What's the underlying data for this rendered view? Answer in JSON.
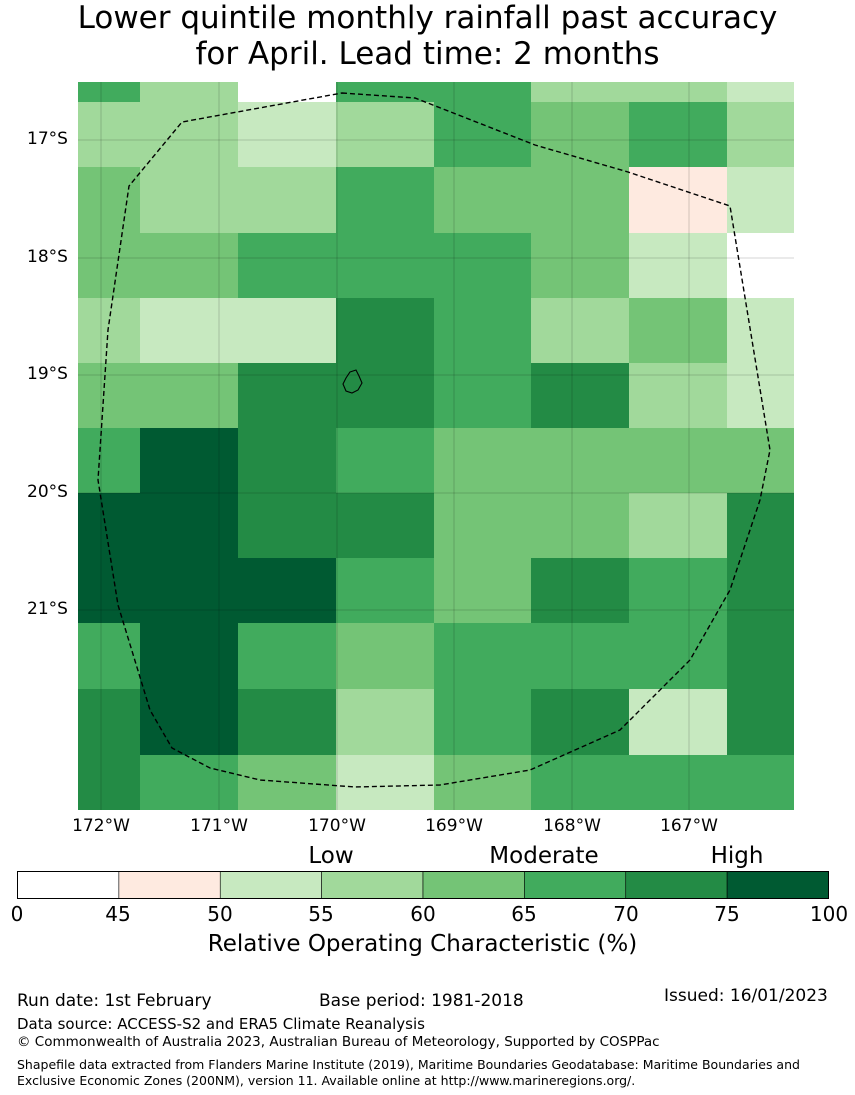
{
  "title_line1": "Lower quintile monthly rainfall past accuracy",
  "title_line2": "for April. Lead time: 2 months",
  "chart_data": {
    "type": "heatmap",
    "title": "Lower quintile monthly rainfall past accuracy for April. Lead time: 2 months",
    "x_ticks": [
      "172°W",
      "171°W",
      "170°W",
      "169°W",
      "168°W",
      "167°W"
    ],
    "y_ticks": [
      "17°S",
      "18°S",
      "19°S",
      "20°S",
      "21°S"
    ],
    "grid": true,
    "value_bins": [
      {
        "range": [
          0,
          45
        ],
        "color": "#ffffff"
      },
      {
        "range": [
          45,
          50
        ],
        "color": "#feeae0"
      },
      {
        "range": [
          50,
          55
        ],
        "color": "#c7e9c0"
      },
      {
        "range": [
          55,
          60
        ],
        "color": "#a1d99b"
      },
      {
        "range": [
          60,
          65
        ],
        "color": "#74c476"
      },
      {
        "range": [
          65,
          70
        ],
        "color": "#41ab5d"
      },
      {
        "range": [
          70,
          75
        ],
        "color": "#238b45"
      },
      {
        "range": [
          75,
          100
        ],
        "color": "#005a32"
      }
    ],
    "cell_values_bin_midpoints": [
      [
        67,
        57,
        40,
        67,
        67,
        57,
        57,
        52
      ],
      [
        57,
        57,
        52,
        57,
        67,
        62,
        67,
        57
      ],
      [
        62,
        57,
        57,
        67,
        62,
        62,
        47,
        52
      ],
      [
        62,
        62,
        67,
        67,
        67,
        62,
        52,
        40
      ],
      [
        57,
        52,
        52,
        72,
        67,
        57,
        62,
        52
      ],
      [
        62,
        62,
        72,
        72,
        67,
        72,
        57,
        52
      ],
      [
        67,
        80,
        72,
        67,
        62,
        62,
        62,
        62
      ],
      [
        80,
        80,
        72,
        72,
        62,
        62,
        57,
        72
      ],
      [
        80,
        80,
        80,
        67,
        62,
        72,
        67,
        72
      ],
      [
        67,
        80,
        67,
        62,
        67,
        67,
        67,
        72
      ],
      [
        72,
        80,
        72,
        57,
        67,
        72,
        52,
        72
      ],
      [
        72,
        67,
        62,
        52,
        62,
        67,
        67,
        67
      ]
    ]
  },
  "colorbar": {
    "category_labels": [
      "Low",
      "Moderate",
      "High"
    ],
    "tick_labels": [
      "0",
      "45",
      "50",
      "55",
      "60",
      "65",
      "70",
      "75",
      "100"
    ],
    "title": "Relative Operating Characteristic (%)"
  },
  "footer": {
    "run_date": "Run date: 1st February",
    "base_period": "Base period: 1981-2018",
    "issued": "Issued: 16/01/2023",
    "data_source": "Data source: ACCESS-S2 and ERA5 Climate Reanalysis",
    "copyright": "© Commonwealth of Australia 2023, Australian Bureau of Meteorology, Supported by COSPPac",
    "shapefile": "Shapefile data extracted from Flanders Marine Institute (2019), Maritime Boundaries Geodatabase: Maritime Boundaries and Exclusive Economic Zones (200NM), version 11. Available online at http://www.marineregions.org/."
  }
}
